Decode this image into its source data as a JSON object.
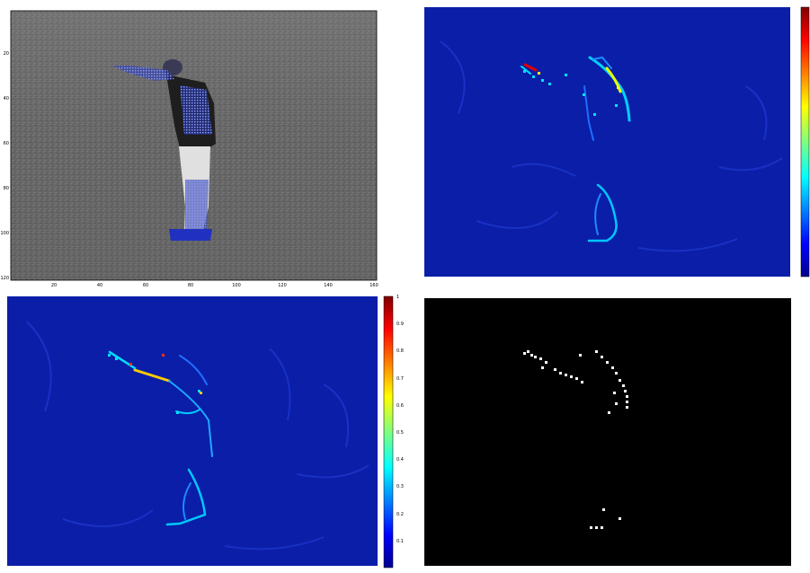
{
  "panel_tl": {
    "x_ticks": [
      "20",
      "40",
      "60",
      "80",
      "100",
      "120",
      "140",
      "160"
    ],
    "y_ticks": [
      "20",
      "40",
      "60",
      "80",
      "100",
      "120"
    ]
  },
  "panel_bl": {
    "colorbar_ticks": [
      "1",
      "0.9",
      "0.8",
      "0.7",
      "0.6",
      "0.5",
      "0.4",
      "0.3",
      "0.2",
      "0.1"
    ]
  },
  "colors": {
    "map_bg": "#0a1ea8",
    "bw_bg": "#000000",
    "grass": "#5a5a5a"
  }
}
